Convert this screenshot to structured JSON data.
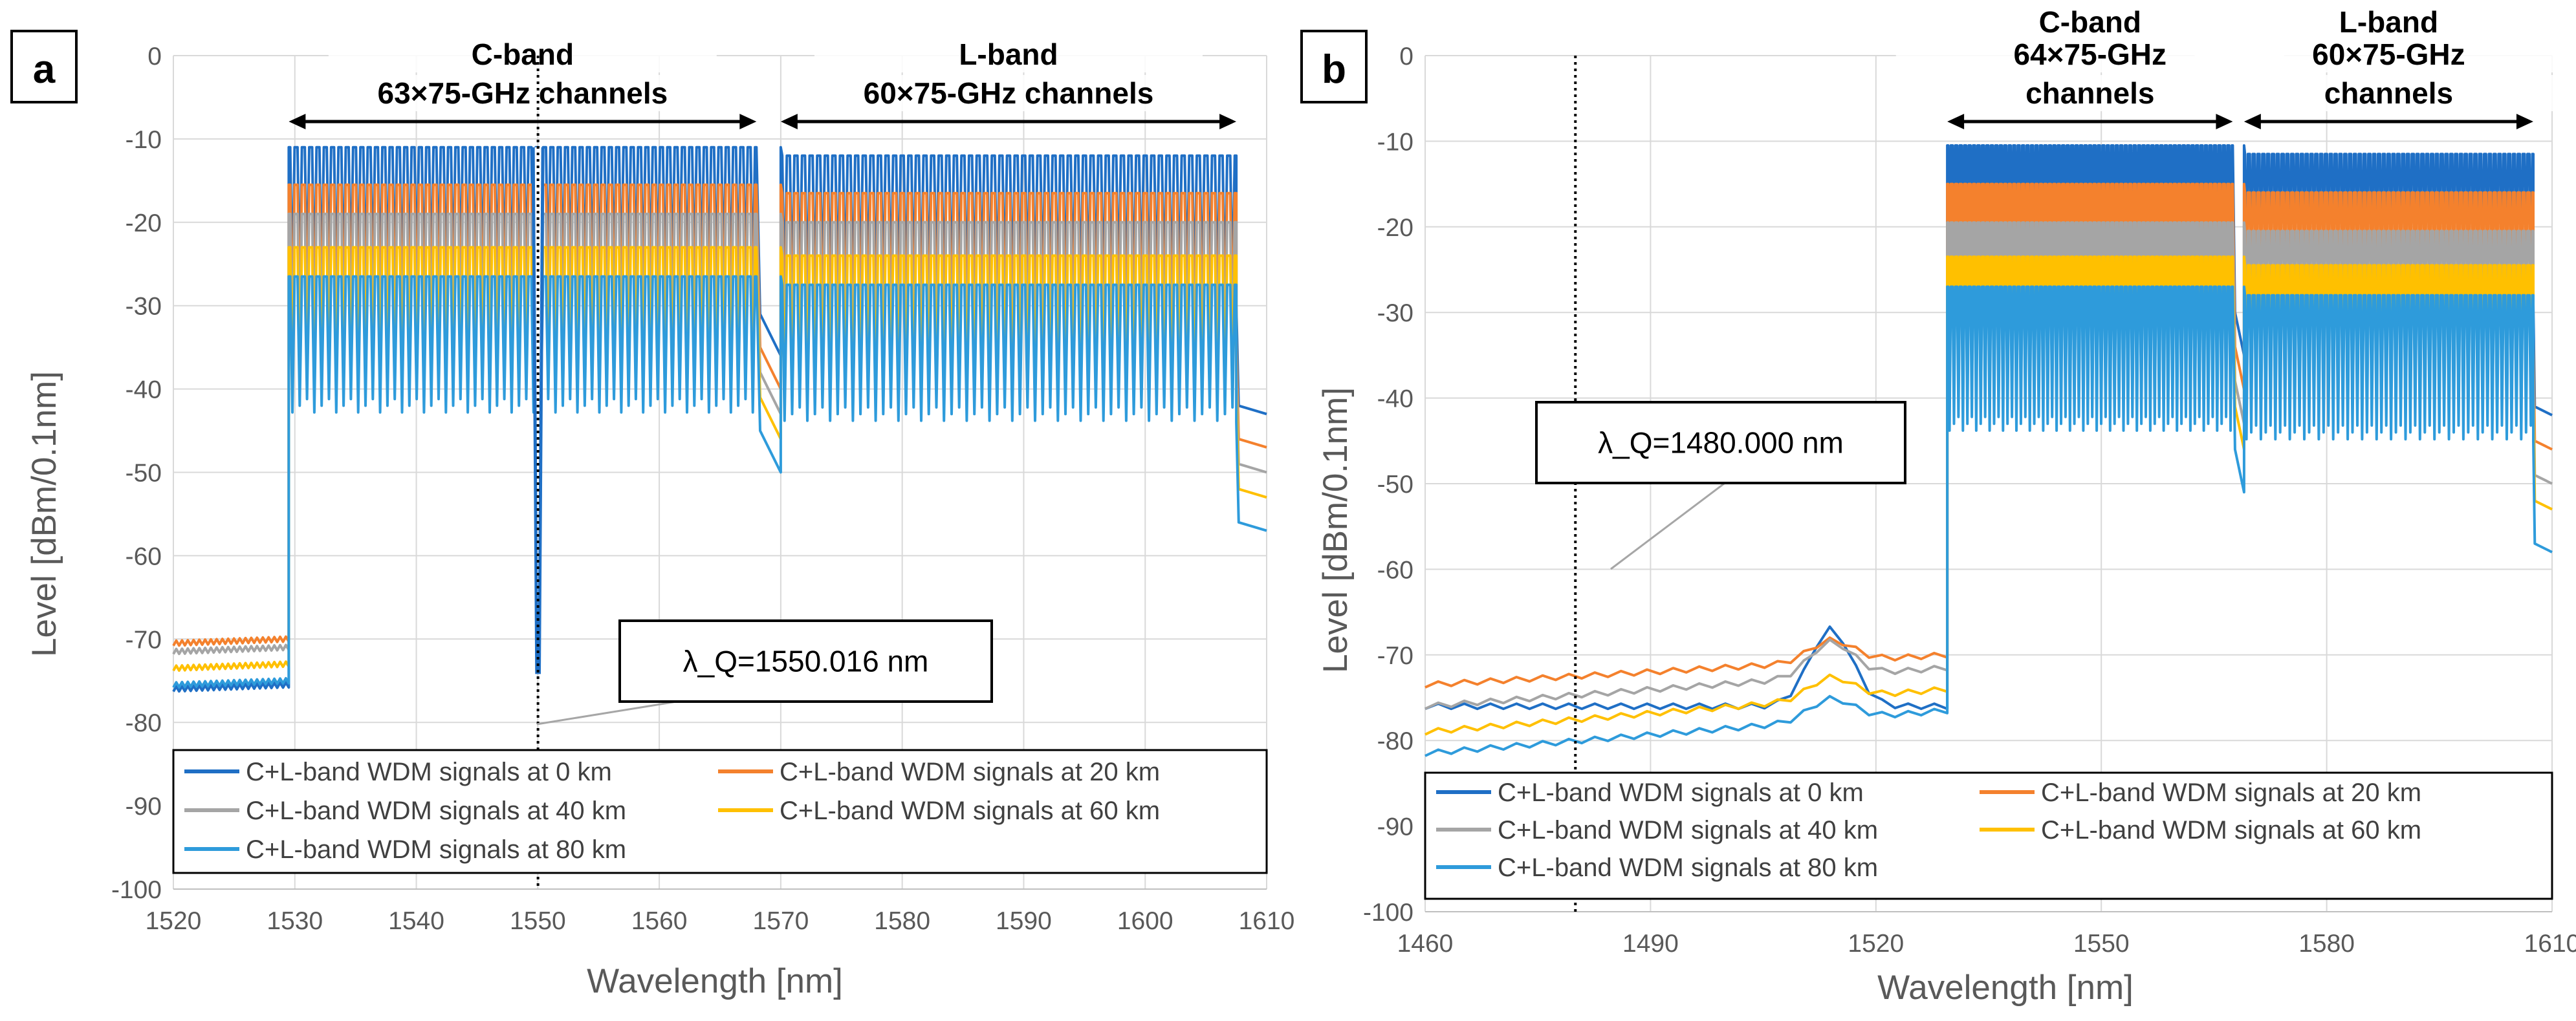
{
  "chart_data": [
    {
      "panel_label": "a",
      "type": "line",
      "xlabel": "Wavelength [nm]",
      "ylabel": "Level [dBm/0.1nm]",
      "xlim": [
        1520,
        1610
      ],
      "ylim": [
        -100,
        0
      ],
      "xticks": [
        1520,
        1530,
        1540,
        1550,
        1560,
        1570,
        1580,
        1590,
        1600,
        1610
      ],
      "yticks": [
        0,
        -10,
        -20,
        -30,
        -40,
        -50,
        -60,
        -70,
        -80,
        -90,
        -100
      ],
      "grid": true,
      "legend_position": "bottom",
      "bands": [
        {
          "line1": "C-band",
          "line2": "63×75-GHz channels",
          "start": 1529.5,
          "end": 1568.0
        },
        {
          "line1": "L-band",
          "line2": "60×75-GHz channels",
          "start": 1570.0,
          "end": 1607.5
        }
      ],
      "marker": {
        "label": "λ_Q=1550.016 nm",
        "x": 1550.016
      },
      "series": [
        {
          "name": "C+L-band WDM signals at 0 km",
          "color": "#1F6FC5",
          "out_of_band": -76,
          "peak": -11,
          "valley": -28
        },
        {
          "name": "C+L-band WDM signals at 20 km",
          "color": "#F4812D",
          "out_of_band": -70.5,
          "peak": -15.5,
          "valley": -32
        },
        {
          "name": "C+L-band WDM signals at 40 km",
          "color": "#A5A5A5",
          "out_of_band": -71.5,
          "peak": -19,
          "valley": -35
        },
        {
          "name": "C+L-band WDM signals at 60 km",
          "color": "#FFC000",
          "out_of_band": -73.5,
          "peak": -23,
          "valley": -38
        },
        {
          "name": "C+L-band WDM signals at 80 km",
          "color": "#2E9BDB",
          "out_of_band": -75.5,
          "peak": -26.5,
          "valley": -42
        }
      ]
    },
    {
      "panel_label": "b",
      "type": "line",
      "xlabel": "Wavelength [nm]",
      "ylabel": "Level [dBm/0.1nm]",
      "xlim": [
        1460,
        1610
      ],
      "ylim": [
        -100,
        0
      ],
      "xticks": [
        1460,
        1490,
        1520,
        1550,
        1580,
        1610
      ],
      "yticks": [
        0,
        -10,
        -20,
        -30,
        -40,
        -50,
        -60,
        -70,
        -80,
        -90,
        -100
      ],
      "grid": true,
      "legend_position": "bottom",
      "bands": [
        {
          "line1": "C-band",
          "line2": "64×75-GHz",
          "line3": "channels",
          "start": 1529.5,
          "end": 1567.5
        },
        {
          "line1": "L-band",
          "line2": "60×75-GHz",
          "line3": "channels",
          "start": 1569.0,
          "end": 1607.5
        }
      ],
      "marker": {
        "label": "λ_Q=1480.000 nm",
        "x": 1480.0
      },
      "series": [
        {
          "name": "C+L-band WDM signals at 0 km",
          "color": "#1F6FC5",
          "out_start": -76,
          "out_end": -76,
          "peak": -10.5,
          "valley": -27
        },
        {
          "name": "C+L-band WDM signals at 20 km",
          "color": "#F4812D",
          "out_start": -73.5,
          "out_end": -70,
          "peak": -15,
          "valley": -31
        },
        {
          "name": "C+L-band WDM signals at 40 km",
          "color": "#A5A5A5",
          "out_start": -76,
          "out_end": -71.5,
          "peak": -19.5,
          "valley": -35
        },
        {
          "name": "C+L-band WDM signals at 60 km",
          "color": "#FFC000",
          "out_start": -79,
          "out_end": -74,
          "peak": -23.5,
          "valley": -38
        },
        {
          "name": "C+L-band WDM signals at 80 km",
          "color": "#2E9BDB",
          "out_start": -81.5,
          "out_end": -76.5,
          "peak": -27,
          "valley": -43
        }
      ]
    }
  ]
}
